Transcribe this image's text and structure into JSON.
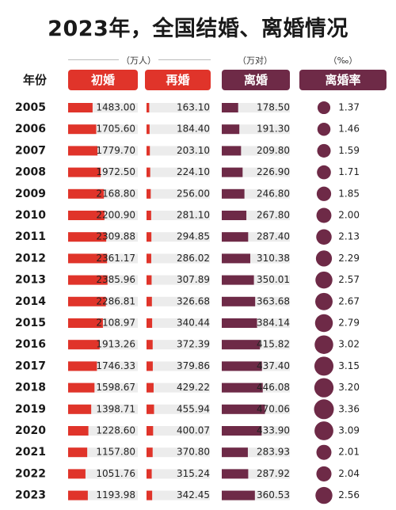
{
  "title": "2023年，全国结婚、离婚情况",
  "units": {
    "marriage": "（万人）",
    "divorce": "（万对）",
    "rate": "（‰）"
  },
  "headers": {
    "year": "年份",
    "first": "初婚",
    "re": "再婚",
    "divorce": "离婚",
    "rate": "离婚率"
  },
  "colors": {
    "red": "#e0342a",
    "wine": "#6e2a47",
    "track": "#ececec"
  },
  "chart_data": {
    "type": "table",
    "columns": [
      "年份",
      "初婚",
      "再婚",
      "离婚",
      "离婚率"
    ],
    "rows": [
      {
        "year": "2005",
        "first": "1483.00",
        "re": "163.10",
        "divorce": "178.50",
        "rate": "1.37"
      },
      {
        "year": "2006",
        "first": "1705.60",
        "re": "184.40",
        "divorce": "191.30",
        "rate": "1.46"
      },
      {
        "year": "2007",
        "first": "1779.70",
        "re": "203.10",
        "divorce": "209.80",
        "rate": "1.59"
      },
      {
        "year": "2008",
        "first": "1972.50",
        "re": "224.10",
        "divorce": "226.90",
        "rate": "1.71"
      },
      {
        "year": "2009",
        "first": "2168.80",
        "re": "256.00",
        "divorce": "246.80",
        "rate": "1.85"
      },
      {
        "year": "2010",
        "first": "2200.90",
        "re": "281.10",
        "divorce": "267.80",
        "rate": "2.00"
      },
      {
        "year": "2011",
        "first": "2309.88",
        "re": "294.85",
        "divorce": "287.40",
        "rate": "2.13"
      },
      {
        "year": "2012",
        "first": "2361.17",
        "re": "286.02",
        "divorce": "310.38",
        "rate": "2.29"
      },
      {
        "year": "2013",
        "first": "2385.96",
        "re": "307.89",
        "divorce": "350.01",
        "rate": "2.57"
      },
      {
        "year": "2014",
        "first": "2286.81",
        "re": "326.68",
        "divorce": "363.68",
        "rate": "2.67"
      },
      {
        "year": "2015",
        "first": "2108.97",
        "re": "340.44",
        "divorce": "384.14",
        "rate": "2.79"
      },
      {
        "year": "2016",
        "first": "1913.26",
        "re": "372.39",
        "divorce": "415.82",
        "rate": "3.02"
      },
      {
        "year": "2017",
        "first": "1746.33",
        "re": "379.86",
        "divorce": "437.40",
        "rate": "3.15"
      },
      {
        "year": "2018",
        "first": "1598.67",
        "re": "429.22",
        "divorce": "446.08",
        "rate": "3.20"
      },
      {
        "year": "2019",
        "first": "1398.71",
        "re": "455.94",
        "divorce": "470.06",
        "rate": "3.36"
      },
      {
        "year": "2020",
        "first": "1228.60",
        "re": "400.07",
        "divorce": "433.90",
        "rate": "3.09"
      },
      {
        "year": "2021",
        "first": "1157.80",
        "re": "370.80",
        "divorce": "283.93",
        "rate": "2.01"
      },
      {
        "year": "2022",
        "first": "1051.76",
        "re": "315.24",
        "divorce": "287.92",
        "rate": "2.04"
      },
      {
        "year": "2023",
        "first": "1193.98",
        "re": "342.45",
        "divorce": "360.53",
        "rate": "2.56"
      }
    ]
  }
}
